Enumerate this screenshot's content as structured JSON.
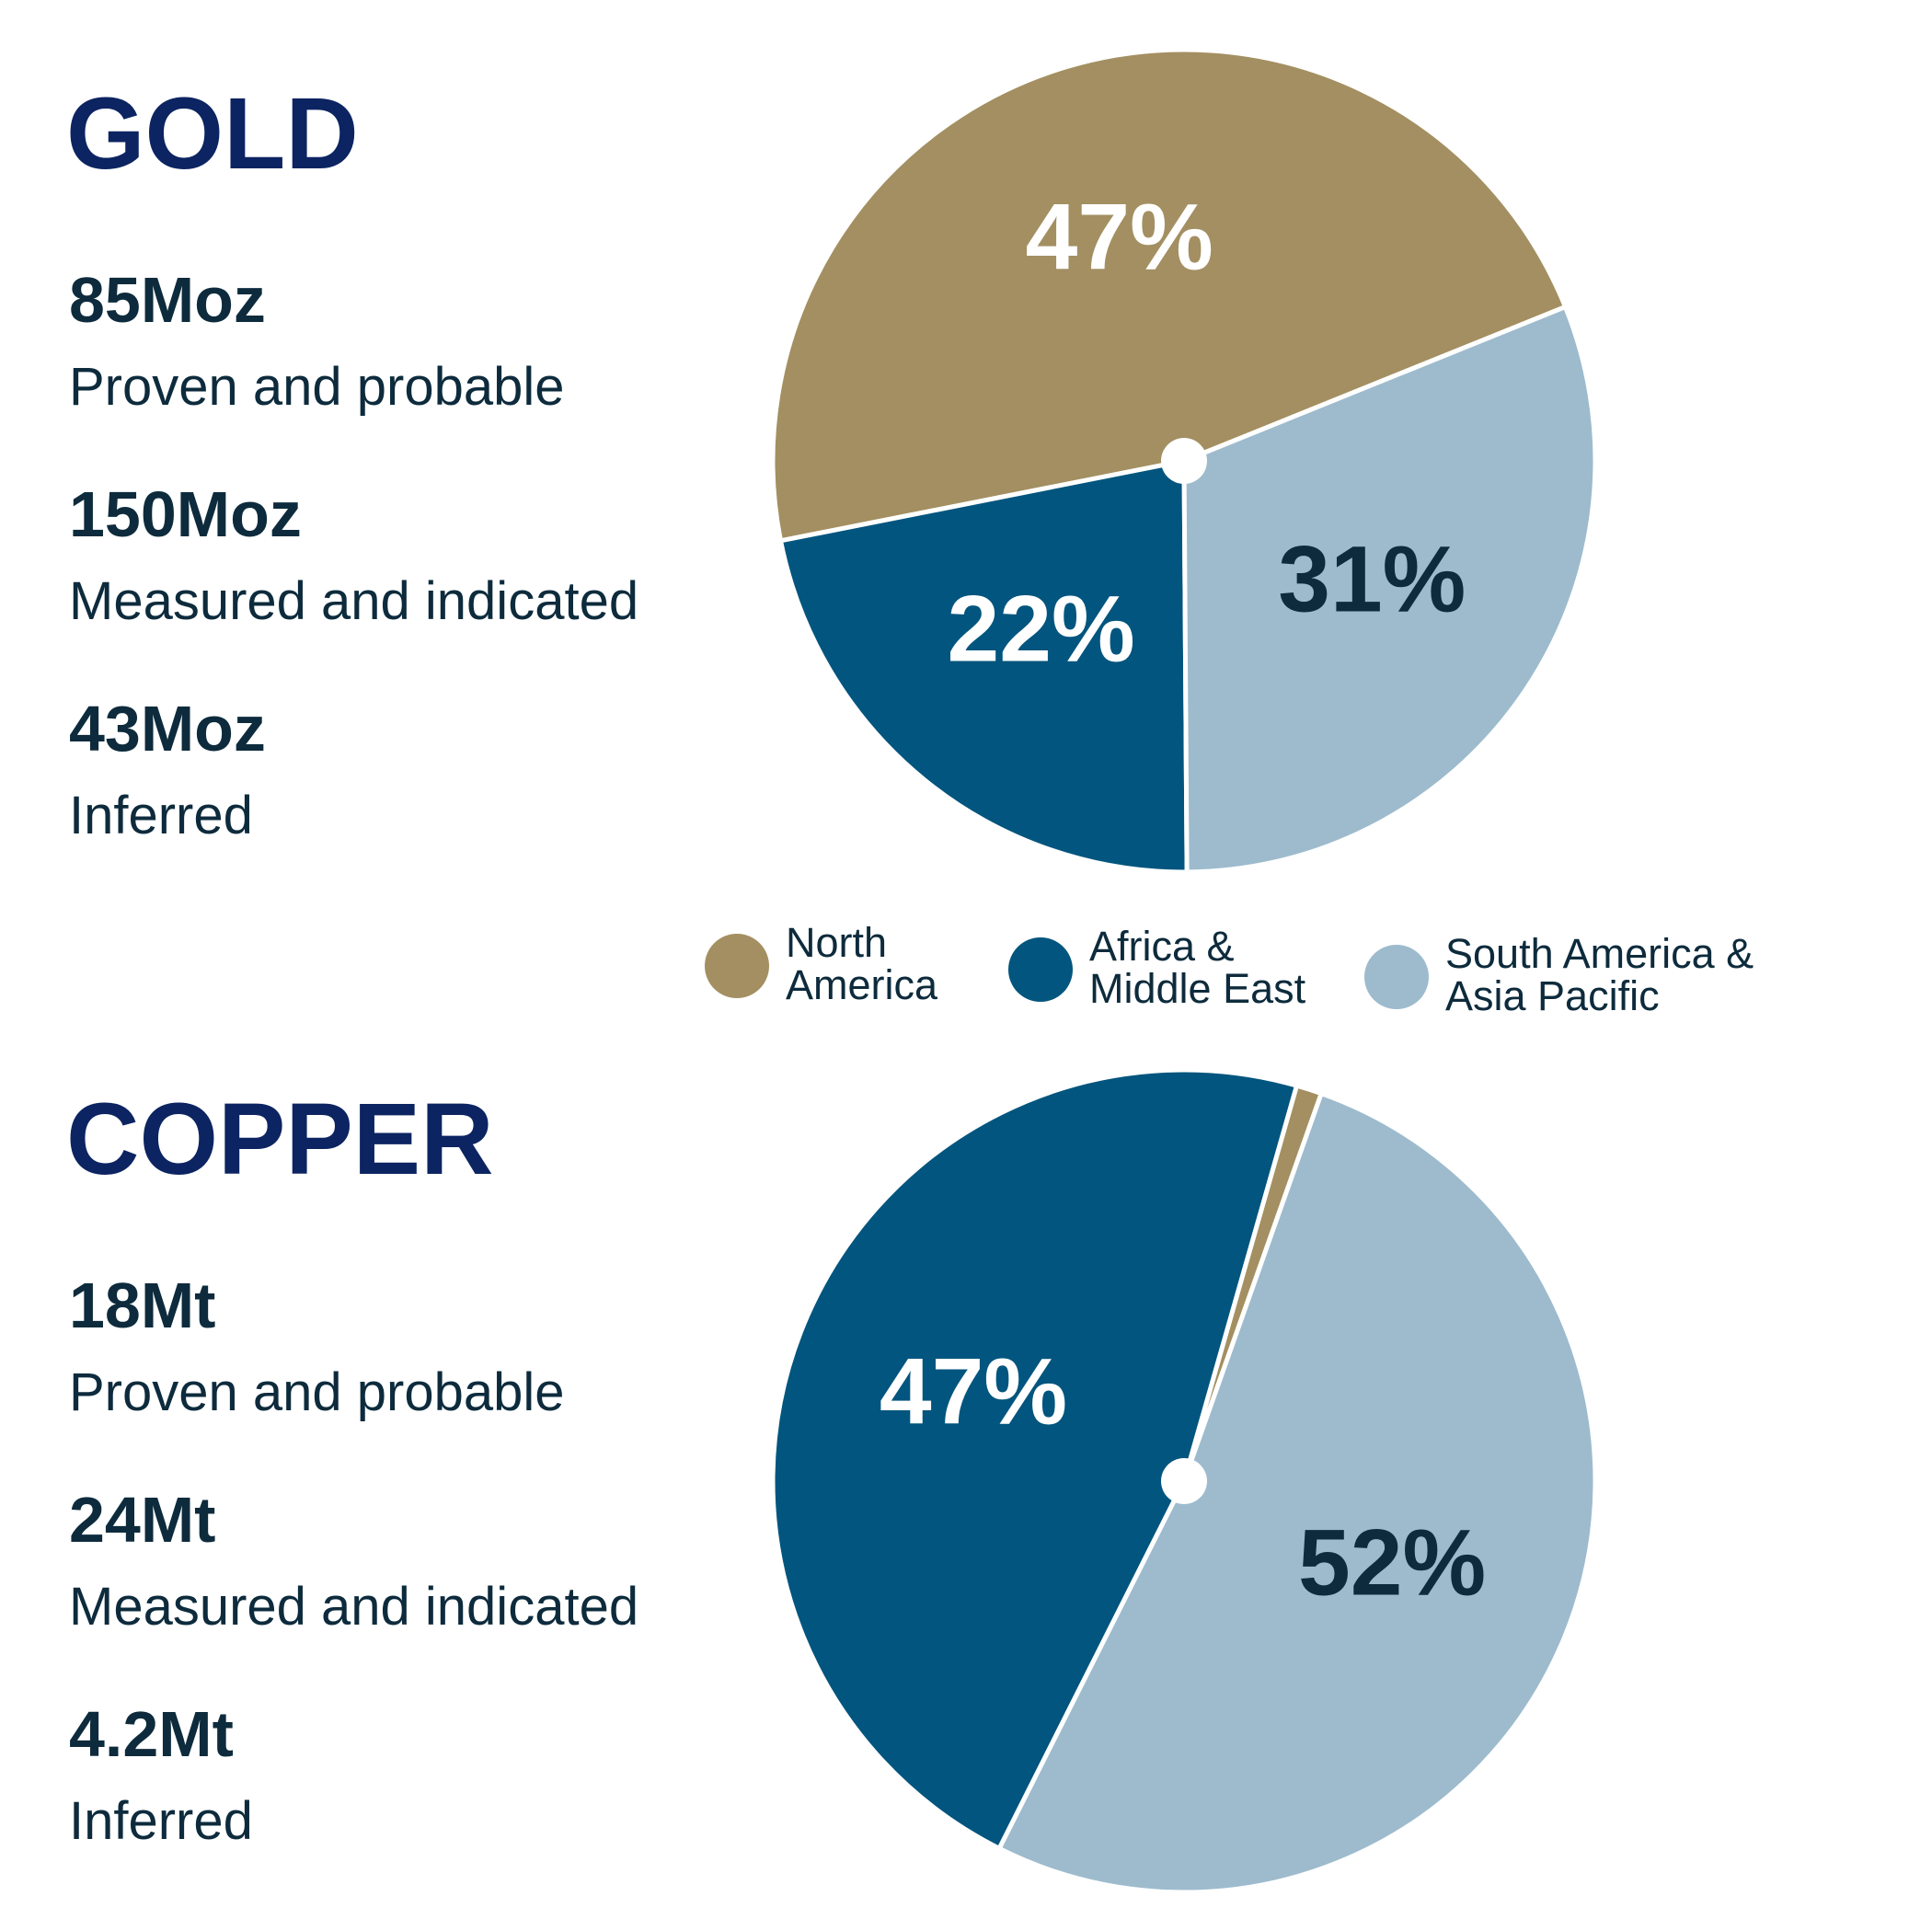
{
  "chart_data": [
    {
      "type": "pie",
      "title": "GOLD",
      "stats": [
        {
          "value": "85Moz",
          "label": "Proven and probable"
        },
        {
          "value": "150Moz",
          "label": "Measured and indicated"
        },
        {
          "value": "43Moz",
          "label": "Inferred"
        }
      ],
      "categories": [
        "North America",
        "Africa & Middle East",
        "South America & Asia Pacific"
      ],
      "values": [
        47,
        22,
        31
      ],
      "value_labels": [
        "47%",
        "22%",
        "31%"
      ],
      "colors": [
        "#a38f61",
        "#02557e",
        "#9dbbcd"
      ],
      "label_colors": [
        "#ffffff",
        "#ffffff",
        "#0d2b3c"
      ]
    },
    {
      "type": "pie",
      "title": "COPPER",
      "stats": [
        {
          "value": "18Mt",
          "label": "Proven and probable"
        },
        {
          "value": "24Mt",
          "label": "Measured and indicated"
        },
        {
          "value": "4.2Mt",
          "label": "Inferred"
        }
      ],
      "values": [
        1,
        47,
        52
      ],
      "value_labels": [
        null,
        "47%",
        "52%"
      ],
      "colors": [
        "#a38f61",
        "#02557e",
        "#9dbbcd"
      ],
      "label_colors": [
        "#ffffff",
        "#ffffff",
        "#0d2b3c"
      ]
    }
  ]
}
